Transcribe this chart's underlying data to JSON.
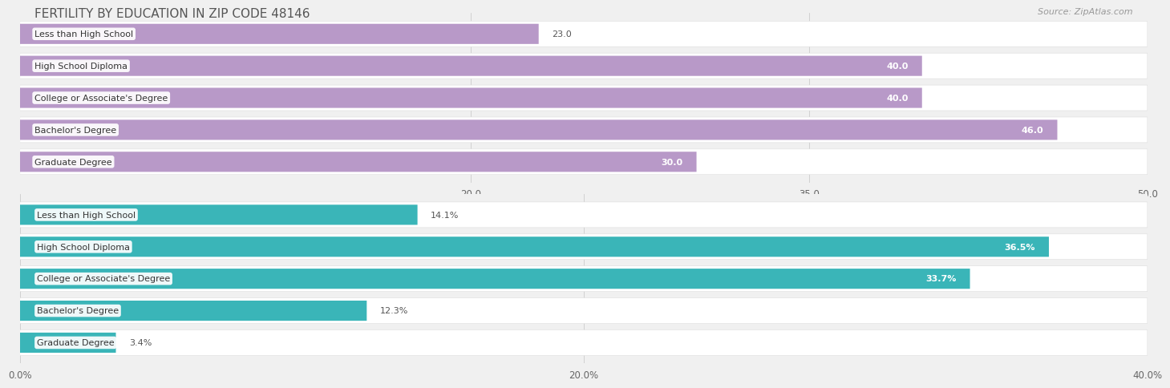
{
  "title": "FERTILITY BY EDUCATION IN ZIP CODE 48146",
  "source": "Source: ZipAtlas.com",
  "top_chart": {
    "categories": [
      "Less than High School",
      "High School Diploma",
      "College or Associate's Degree",
      "Bachelor's Degree",
      "Graduate Degree"
    ],
    "values": [
      23.0,
      40.0,
      40.0,
      46.0,
      30.0
    ],
    "bar_color": "#b899c8",
    "xlim": [
      0,
      50
    ],
    "xticks": [
      20.0,
      35.0,
      50.0
    ],
    "xtick_labels": [
      "20.0",
      "35.0",
      "50.0"
    ]
  },
  "bottom_chart": {
    "categories": [
      "Less than High School",
      "High School Diploma",
      "College or Associate's Degree",
      "Bachelor's Degree",
      "Graduate Degree"
    ],
    "values": [
      14.1,
      36.5,
      33.7,
      12.3,
      3.4
    ],
    "labels": [
      "14.1%",
      "36.5%",
      "33.7%",
      "12.3%",
      "3.4%"
    ],
    "bar_color": "#3ab5b8",
    "xlim": [
      0,
      40
    ],
    "xticks": [
      0.0,
      20.0,
      40.0
    ],
    "xtick_labels": [
      "0.0%",
      "20.0%",
      "40.0%"
    ]
  },
  "fig_bg": "#f0f0f0",
  "row_bg": "#ffffff",
  "label_fontsize": 8.0,
  "value_fontsize": 8.0,
  "title_fontsize": 11,
  "source_fontsize": 8
}
